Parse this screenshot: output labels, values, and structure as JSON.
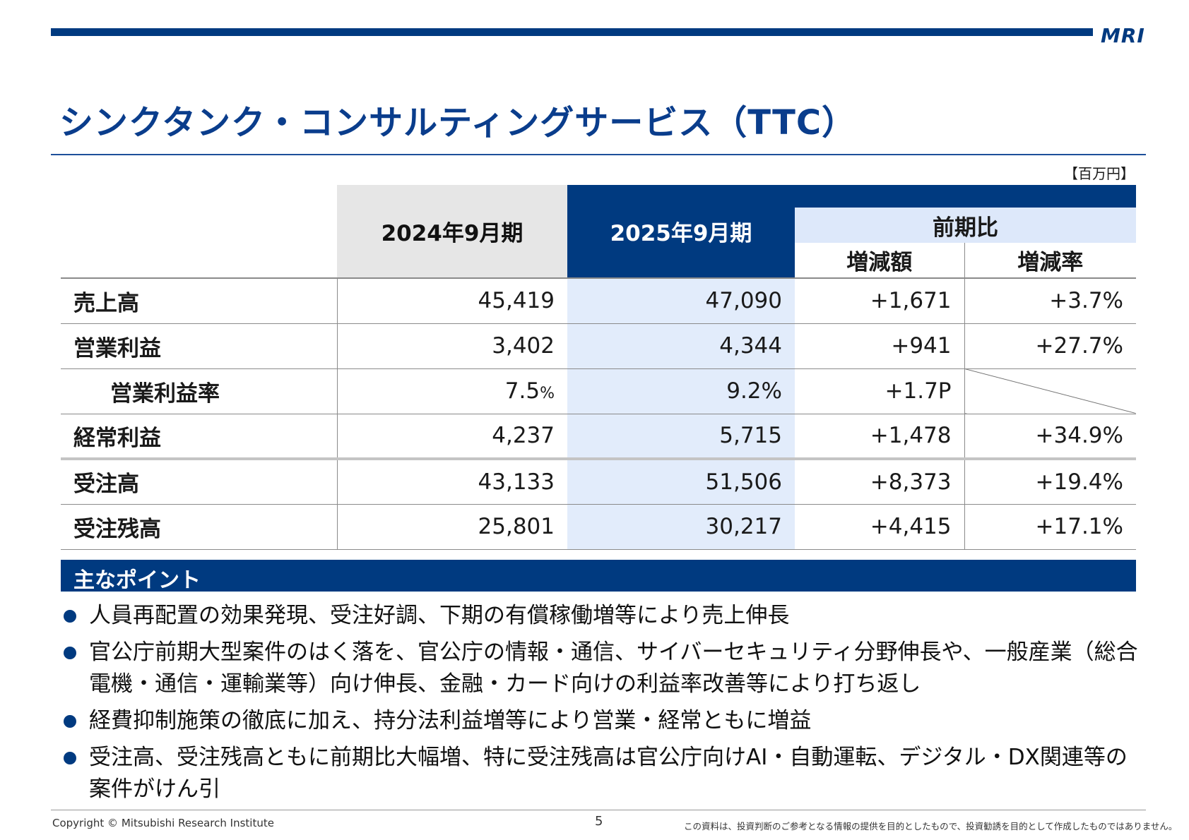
{
  "logo": "MRI",
  "title": "シンクタンク・コンサルティングサービス（TTC）",
  "unit": "【百万円】",
  "table": {
    "header": {
      "prev": "2024年9月期",
      "cur": "2025年9月期",
      "comparison": "前期比",
      "diff": "増減額",
      "rate": "増減率"
    },
    "rows": [
      {
        "label": "売上高",
        "prev": "45,419",
        "cur": "47,090",
        "diff": "+1,671",
        "rate": "+3.7%"
      },
      {
        "label": "営業利益",
        "prev": "3,402",
        "cur": "4,344",
        "diff": "+941",
        "rate": "+27.7%"
      },
      {
        "label": "営業利益率",
        "prev": "7.5",
        "prev_unit": "%",
        "cur": "9.2%",
        "diff": "+1.7P",
        "rate": ""
      },
      {
        "label": "経常利益",
        "prev": "4,237",
        "cur": "5,715",
        "diff": "+1,478",
        "rate": "+34.9%"
      },
      {
        "label": "受注高",
        "prev": "43,133",
        "cur": "51,506",
        "diff": "+8,373",
        "rate": "+19.4%"
      },
      {
        "label": "受注残高",
        "prev": "25,801",
        "cur": "30,217",
        "diff": "+4,415",
        "rate": "+17.1%"
      }
    ]
  },
  "points": {
    "title": "主なポイント",
    "items": [
      "人員再配置の効果発現、受注好調、下期の有償稼働増等により売上伸長",
      "官公庁前期大型案件のはく落を、官公庁の情報・通信、サイバーセキュリティ分野伸長や、一般産業（総合電機・通信・運輸業等）向け伸長、金融・カード向けの利益率改善等により打ち返し",
      "経費抑制施策の徹底に加え、持分法利益増等により営業・経常ともに増益",
      "受注高、受注残高ともに前期比大幅増、特に受注残高は官公庁向けAI・自動運転、デジタル・DX関連等の案件がけん引"
    ]
  },
  "footer": {
    "copyright": "Copyright © Mitsubishi Research Institute",
    "page": "5",
    "disclaimer": "この資料は、投資判断のご参考となる情報の提供を目的としたもので、投資勧誘を目的として作成したものではありません。"
  },
  "colors": {
    "brand_navy": "#003a80",
    "current_column_tint": "#e2ecfb",
    "comparison_header_tint": "#dde8fa",
    "previous_header_gray": "#e6e6e6"
  }
}
